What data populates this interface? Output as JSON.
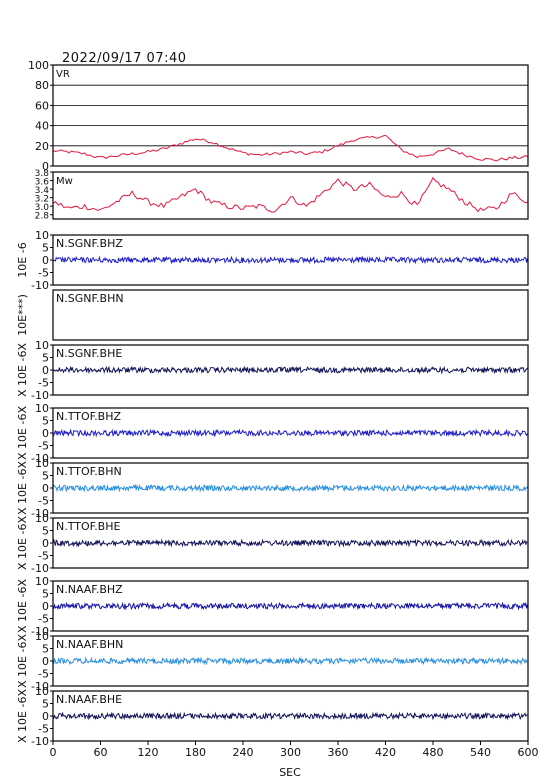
{
  "header": {
    "timestamp": "2022/09/17 07:40"
  },
  "colors": {
    "frame": "#000000",
    "vr_mw": "#e8173f",
    "dark_blue": "#1414a8",
    "mid_blue": "#2020c8",
    "light_blue": "#2a8fe0",
    "navy": "#14145a"
  },
  "chart_data": {
    "type": "line",
    "xlabel": "SEC",
    "xlim": [
      0,
      600
    ],
    "x_ticks": [
      "0",
      "60",
      "120",
      "180",
      "240",
      "300",
      "360",
      "420",
      "480",
      "540",
      "600"
    ],
    "panels": [
      {
        "label": "VR",
        "ylim": [
          0,
          100
        ],
        "y_ticks": [
          "100",
          "80",
          "60",
          "40",
          "20",
          "0"
        ],
        "grid": true,
        "color_key": "vr_mw",
        "x": [
          0,
          20,
          40,
          60,
          80,
          100,
          120,
          140,
          160,
          180,
          200,
          220,
          240,
          260,
          280,
          300,
          320,
          340,
          360,
          380,
          400,
          420,
          440,
          460,
          480,
          500,
          520,
          540,
          560,
          580,
          600
        ],
        "y": [
          15,
          14,
          12,
          8,
          10,
          12,
          14,
          17,
          22,
          27,
          24,
          18,
          13,
          11,
          12,
          14,
          12,
          14,
          20,
          26,
          28,
          30,
          16,
          9,
          12,
          17,
          11,
          7,
          6,
          8,
          9
        ]
      },
      {
        "label": "Mw",
        "ylim": [
          2.7,
          3.8
        ],
        "y_ticks": [
          "3.8",
          "3.6",
          "3.4",
          "3.2",
          "3.0",
          "2.8"
        ],
        "grid": false,
        "color_key": "vr_mw",
        "x": [
          0,
          20,
          40,
          60,
          80,
          100,
          120,
          140,
          160,
          180,
          200,
          220,
          240,
          260,
          280,
          300,
          320,
          340,
          360,
          380,
          400,
          420,
          440,
          460,
          480,
          500,
          520,
          540,
          560,
          580,
          600
        ],
        "y": [
          3.1,
          2.95,
          3.0,
          2.9,
          3.1,
          3.3,
          3.1,
          3.0,
          3.2,
          3.4,
          3.1,
          3.0,
          2.95,
          3.0,
          2.9,
          3.2,
          3.0,
          3.3,
          3.6,
          3.4,
          3.5,
          3.2,
          3.3,
          3.0,
          3.6,
          3.4,
          3.1,
          2.9,
          2.95,
          3.3,
          3.1
        ]
      },
      {
        "label": "N.SGNF.BHZ",
        "ylim": [
          -10,
          10
        ],
        "y_ticks": [
          "10",
          "5",
          "0",
          "-5",
          "-10"
        ],
        "y_axis_label": "10E -6",
        "color_key": "mid_blue",
        "trace": true
      },
      {
        "label": "N.SGNF.BHN",
        "ylim": [
          -10,
          10
        ],
        "y_ticks": [],
        "y_axis_label": "10E***)",
        "color_key": "mid_blue",
        "trace": false
      },
      {
        "label": "N.SGNF.BHE",
        "ylim": [
          -10,
          10
        ],
        "y_ticks": [
          "10",
          "5",
          "0",
          "-5",
          "-10"
        ],
        "y_axis_label": "X 10E -6X",
        "color_key": "navy",
        "trace": true
      },
      {
        "label": "N.TTOF.BHZ",
        "ylim": [
          -10,
          10
        ],
        "y_ticks": [
          "10",
          "5",
          "0",
          "-5",
          "-10"
        ],
        "y_axis_label": "X 10E -6X",
        "color_key": "mid_blue",
        "trace": true
      },
      {
        "label": "N.TTOF.BHN",
        "ylim": [
          -10,
          10
        ],
        "y_ticks": [
          "10",
          "5",
          "0",
          "-5",
          "-10"
        ],
        "y_axis_label": "X 10E -6X",
        "color_key": "light_blue",
        "trace": true
      },
      {
        "label": "N.TTOF.BHE",
        "ylim": [
          -10,
          10
        ],
        "y_ticks": [
          "10",
          "5",
          "0",
          "-5",
          "-10"
        ],
        "y_axis_label": "X 10E -6X",
        "color_key": "navy",
        "trace": true
      },
      {
        "label": "N.NAAF.BHZ",
        "ylim": [
          -10,
          10
        ],
        "y_ticks": [
          "10",
          "5",
          "0",
          "-5",
          "-10"
        ],
        "y_axis_label": "X 10E -6X",
        "color_key": "dark_blue",
        "trace": true
      },
      {
        "label": "N.NAAF.BHN",
        "ylim": [
          -10,
          10
        ],
        "y_ticks": [
          "10",
          "5",
          "0",
          "-5",
          "-10"
        ],
        "y_axis_label": "X 10E -6X",
        "color_key": "light_blue",
        "trace": true
      },
      {
        "label": "N.NAAF.BHE",
        "ylim": [
          -10,
          10
        ],
        "y_ticks": [
          "10",
          "5",
          "0",
          "-5",
          "-10"
        ],
        "y_axis_label": "X 10E -6X",
        "color_key": "navy",
        "trace": true
      }
    ]
  }
}
